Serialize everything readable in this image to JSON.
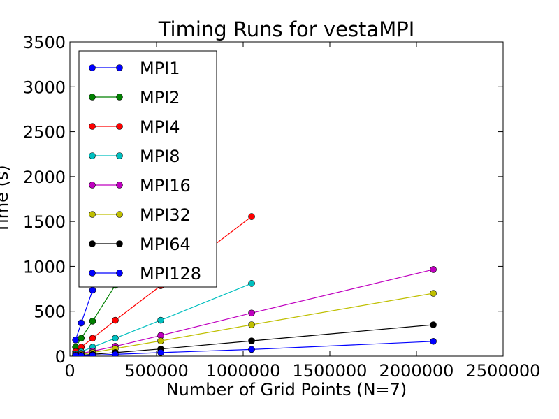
{
  "chart_data": {
    "type": "line",
    "title": "Timing Runs for vestaMPI",
    "xlabel": "Number of Grid Points (N=7)",
    "ylabel": "Time (s)",
    "xlim": [
      0,
      2500000
    ],
    "ylim": [
      0,
      3500
    ],
    "xticks": [
      "0",
      "500000",
      "1000000",
      "1500000",
      "2000000",
      "2500000"
    ],
    "yticks": [
      "0",
      "500",
      "1000",
      "1500",
      "2000",
      "2500",
      "3000",
      "3500"
    ],
    "grid": false,
    "legend_position": "upper-left",
    "series": [
      {
        "name": "MPI1",
        "color": "#0000ff",
        "x": [
          32768,
          65536,
          131072,
          262144
        ],
        "y": [
          180,
          370,
          735,
          1480
        ]
      },
      {
        "name": "MPI2",
        "color": "#008000",
        "x": [
          32768,
          65536,
          131072,
          262144
        ],
        "y": [
          100,
          200,
          390,
          790
        ]
      },
      {
        "name": "MPI4",
        "color": "#ff0000",
        "x": [
          32768,
          65536,
          131072,
          262144,
          524288,
          1048576
        ],
        "y": [
          50,
          100,
          200,
          400,
          785,
          1555
        ]
      },
      {
        "name": "MPI8",
        "color": "#00bfbf",
        "x": [
          32768,
          65536,
          131072,
          262144,
          524288,
          1048576
        ],
        "y": [
          25,
          50,
          100,
          200,
          400,
          810
        ]
      },
      {
        "name": "MPI16",
        "color": "#bf00bf",
        "x": [
          32768,
          65536,
          131072,
          262144,
          524288,
          1048576,
          2097152
        ],
        "y": [
          15,
          30,
          55,
          110,
          230,
          480,
          965
        ]
      },
      {
        "name": "MPI32",
        "color": "#bfbf00",
        "x": [
          32768,
          65536,
          131072,
          262144,
          524288,
          1048576,
          2097152
        ],
        "y": [
          10,
          20,
          40,
          85,
          170,
          350,
          700
        ]
      },
      {
        "name": "MPI64",
        "color": "#000000",
        "x": [
          32768,
          65536,
          131072,
          262144,
          524288,
          1048576,
          2097152
        ],
        "y": [
          5,
          10,
          20,
          40,
          80,
          170,
          350
        ]
      },
      {
        "name": "MPI128",
        "color": "#0000ff",
        "x": [
          32768,
          65536,
          131072,
          262144,
          524288,
          1048576,
          2097152
        ],
        "y": [
          3,
          5,
          10,
          20,
          40,
          75,
          165
        ]
      }
    ]
  }
}
